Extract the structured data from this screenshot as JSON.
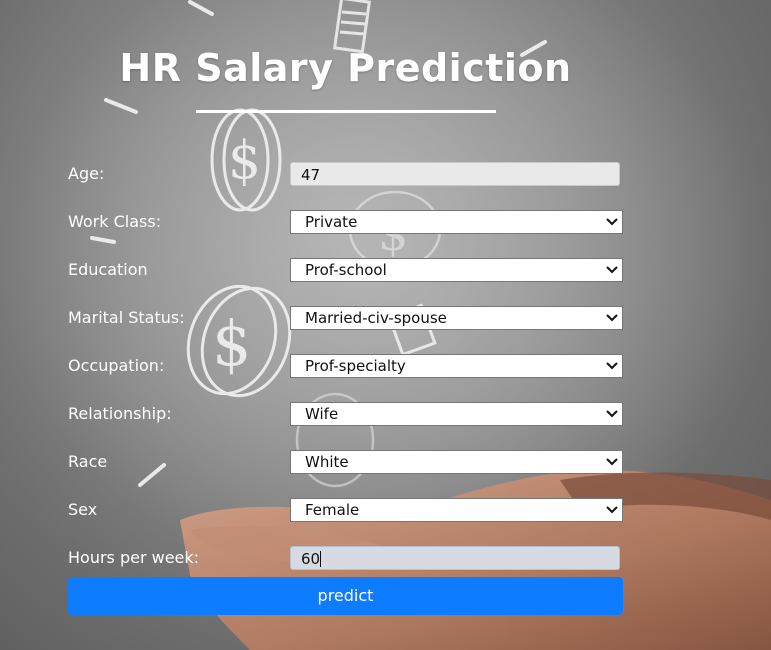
{
  "page": {
    "title": "HR Salary Prediction"
  },
  "form": {
    "fields": [
      {
        "label": "Age:",
        "type": "text",
        "value": "47"
      },
      {
        "label": "Work Class:",
        "type": "select",
        "value": "Private"
      },
      {
        "label": "Education",
        "type": "select",
        "value": "Prof-school"
      },
      {
        "label": "Marital Status:",
        "type": "select",
        "value": "Married-civ-spouse"
      },
      {
        "label": "Occupation:",
        "type": "select",
        "value": "Prof-specialty"
      },
      {
        "label": "Relationship:",
        "type": "select",
        "value": "Wife"
      },
      {
        "label": "Race",
        "type": "select",
        "value": "White"
      },
      {
        "label": "Sex",
        "type": "select",
        "value": "Female"
      },
      {
        "label": "Hours per week:",
        "type": "text",
        "value": "60"
      }
    ],
    "submit_label": "predict"
  },
  "icons": {
    "dropdown": "chevron-down-icon",
    "background": "coin-icon"
  },
  "colors": {
    "accent": "#0d7cff",
    "text": "#ffffff"
  }
}
